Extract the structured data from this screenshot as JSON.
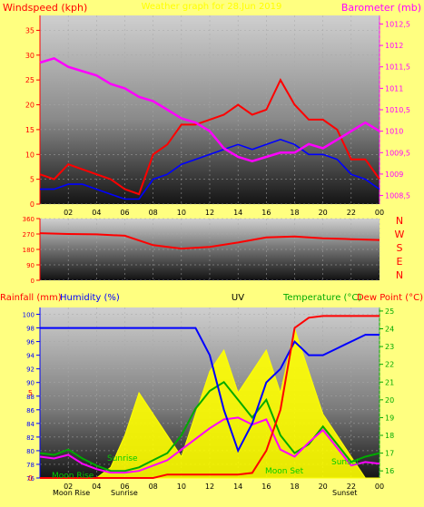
{
  "header": {
    "wind_label": "Windspeed (kph)",
    "title": "Weather graph for 28.Jun 2019",
    "baro_label": "Barometer (mb)"
  },
  "colors": {
    "background": "#ffff80",
    "wind": "#ff0000",
    "gust_avg": "#0000ff",
    "barometer": "#ff00ff",
    "temperature": "#00aa00",
    "dewpoint": "#ff0000",
    "humidity": "#0000ff",
    "rain": "#ff0000",
    "uv": "#ffff00"
  },
  "x_ticks": [
    "02",
    "04",
    "06",
    "08",
    "10",
    "12",
    "14",
    "16",
    "18",
    "20",
    "22",
    "00"
  ],
  "chart_data": [
    {
      "type": "line",
      "name": "wind-barometer",
      "x": [
        0,
        1,
        2,
        3,
        4,
        5,
        6,
        7,
        8,
        9,
        10,
        11,
        12,
        13,
        14,
        15,
        16,
        17,
        18,
        19,
        20,
        21,
        22,
        23,
        24
      ],
      "series": [
        {
          "name": "Windspeed",
          "axis": "left",
          "values": [
            6,
            5,
            8,
            7,
            6,
            5,
            3,
            2,
            10,
            12,
            16,
            16,
            17,
            18,
            20,
            18,
            19,
            25,
            20,
            17,
            17,
            15,
            9,
            9,
            5
          ]
        },
        {
          "name": "Wind average",
          "axis": "left",
          "values": [
            3,
            3,
            4,
            4,
            3,
            2,
            1,
            1,
            5,
            6,
            8,
            9,
            10,
            11,
            12,
            11,
            12,
            13,
            12,
            10,
            10,
            9,
            6,
            5,
            3
          ]
        },
        {
          "name": "Barometer",
          "axis": "right",
          "values": [
            1011.6,
            1011.7,
            1011.5,
            1011.4,
            1011.3,
            1011.1,
            1011.0,
            1010.8,
            1010.7,
            1010.5,
            1010.3,
            1010.2,
            1010.0,
            1009.6,
            1009.4,
            1009.3,
            1009.4,
            1009.5,
            1009.5,
            1009.7,
            1009.6,
            1009.8,
            1010.0,
            1010.2,
            1010.0
          ]
        }
      ],
      "y_left": {
        "label": "Windspeed (kph)",
        "ticks": [
          "0",
          "5",
          "10",
          "15",
          "20",
          "25",
          "30",
          "35"
        ],
        "range": [
          0,
          38
        ]
      },
      "y_right": {
        "label": "Barometer (mb)",
        "ticks": [
          "1008,5",
          "1009",
          "1009,5",
          "1010",
          "1010,5",
          "1011",
          "1011,5",
          "1012",
          "1012,5"
        ],
        "range": [
          1008.3,
          1012.7
        ]
      }
    },
    {
      "type": "line",
      "name": "wind-direction",
      "x": [
        0,
        2,
        4,
        6,
        8,
        10,
        12,
        14,
        16,
        18,
        20,
        22,
        24
      ],
      "series": [
        {
          "name": "Wind direction",
          "values": [
            275,
            270,
            268,
            260,
            205,
            185,
            195,
            220,
            250,
            255,
            245,
            240,
            235
          ]
        }
      ],
      "y": {
        "ticks": [
          "0",
          "90",
          "180",
          "270",
          "360"
        ],
        "range": [
          0,
          360
        ]
      },
      "compass": [
        "N",
        "W",
        "S",
        "E",
        "N"
      ]
    },
    {
      "type": "line",
      "name": "rain-humidity-temp",
      "x": [
        0,
        1,
        2,
        3,
        4,
        5,
        6,
        7,
        8,
        9,
        10,
        11,
        12,
        13,
        14,
        15,
        16,
        17,
        18,
        19,
        20,
        21,
        22,
        23,
        24
      ],
      "series": [
        {
          "name": "Humidity",
          "axis": "humidity",
          "values": [
            98,
            98,
            98,
            98,
            98,
            98,
            98,
            98,
            98,
            98,
            98,
            98,
            94,
            86,
            80,
            84,
            90,
            92,
            96,
            94,
            94,
            95,
            96,
            97,
            97
          ]
        },
        {
          "name": "Temperature",
          "axis": "temp",
          "values": [
            17.0,
            16.9,
            17.2,
            16.7,
            16.3,
            16.0,
            16.0,
            16.2,
            16.6,
            17.0,
            18.0,
            19.5,
            20.5,
            21.0,
            20.0,
            19.0,
            20.0,
            18.0,
            17.0,
            17.5,
            18.5,
            17.5,
            16.5,
            16.8,
            17.0
          ]
        },
        {
          "name": "Dew Point",
          "axis": "temp",
          "values": [
            16.8,
            16.7,
            16.9,
            16.4,
            16.1,
            15.9,
            15.9,
            16.0,
            16.3,
            16.6,
            17.2,
            17.8,
            18.4,
            18.9,
            19.0,
            18.6,
            18.9,
            17.2,
            16.8,
            17.6,
            18.3,
            17.3,
            16.3,
            16.5,
            16.4
          ]
        },
        {
          "name": "Rainfall",
          "axis": "rain",
          "values": [
            0,
            0,
            0,
            0,
            0,
            0,
            0,
            0,
            0,
            0.2,
            0.2,
            0.2,
            0.2,
            0.2,
            0.2,
            0.3,
            1.6,
            4.0,
            8.8,
            9.4,
            9.5,
            9.5,
            9.5,
            9.5,
            9.5
          ]
        },
        {
          "name": "UV",
          "axis": "uv",
          "values": [
            0,
            0,
            0,
            0,
            0,
            0.5,
            2,
            4,
            3,
            2,
            1,
            3,
            5,
            6,
            4,
            5,
            6,
            4,
            7,
            5,
            3,
            2,
            1,
            0,
            0
          ]
        }
      ],
      "y_rain": {
        "label": "Rainfall (mm)",
        "ticks": [
          "0",
          "5"
        ],
        "range": [
          0,
          10
        ]
      },
      "y_humidity": {
        "label": "Humidity (%)",
        "ticks": [
          "76",
          "78",
          "80",
          "82",
          "84",
          "86",
          "88",
          "90",
          "92",
          "94",
          "96",
          "98",
          "100"
        ],
        "range": [
          76,
          101
        ]
      },
      "y_temp": {
        "label": "Temperature (°C)",
        "ticks": [
          "16",
          "17",
          "18",
          "19",
          "20",
          "21",
          "22",
          "23",
          "24",
          "25"
        ],
        "range": [
          15.6,
          25.2
        ]
      },
      "uv_label": "UV",
      "dewpoint_label": "Dew Point (°C)",
      "annotations": {
        "moon_rise": "Moon Rise",
        "sunrise": "Sunrise",
        "sunset": "Sunset",
        "moon_set": "Moon Set"
      }
    }
  ]
}
